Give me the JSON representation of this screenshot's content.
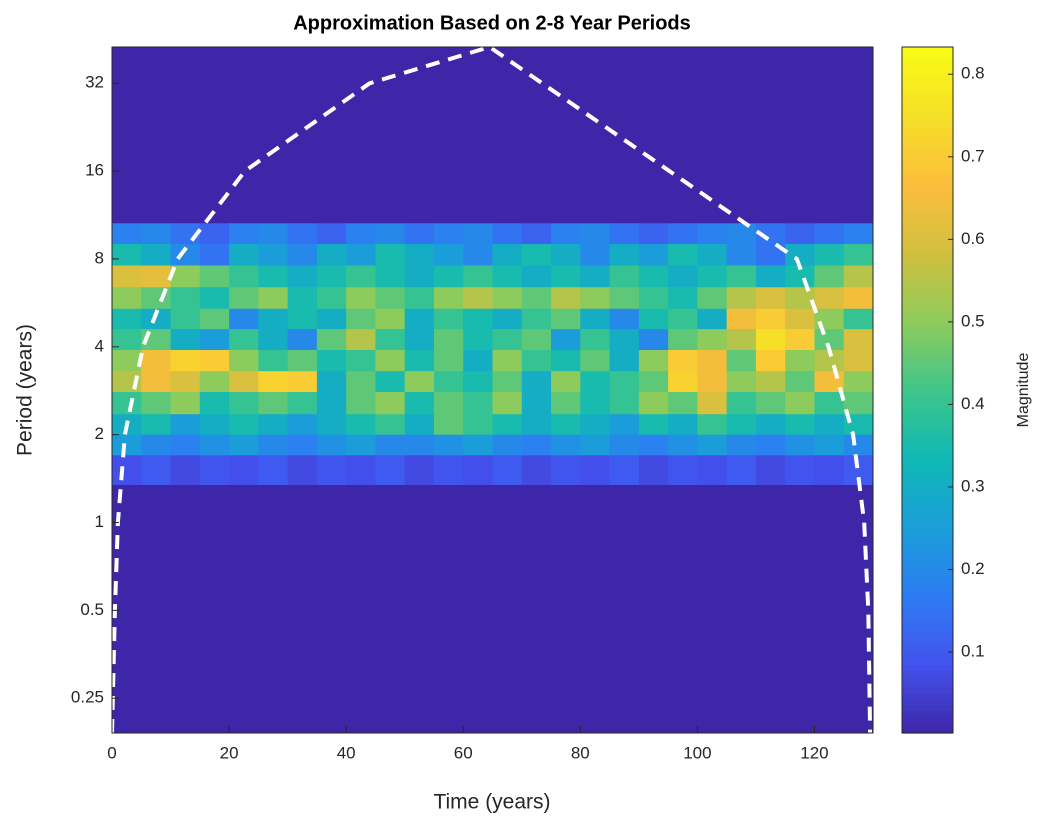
{
  "chart_data": {
    "type": "heatmap",
    "title": "Approximation Based on 2-8 Year Periods",
    "x_label": "Time (years)",
    "y_label": "Period (years)",
    "colorbar_label": "Magnitude",
    "y_scale": "log2",
    "xlim": [
      0,
      130
    ],
    "ylim": [
      0.19,
      42.6
    ],
    "xticks": [
      0,
      20,
      40,
      60,
      80,
      100,
      120
    ],
    "yticks": [
      0.25,
      0.5,
      1,
      2,
      4,
      8,
      16,
      32
    ],
    "clim": [
      0.002,
      0.833
    ],
    "cticks": [
      0.1,
      0.2,
      0.3,
      0.4,
      0.5,
      0.6,
      0.7,
      0.8
    ],
    "colormap": [
      "#3e26a8",
      "#4352ee",
      "#2d7cf3",
      "#1a9ed9",
      "#0fb8b5",
      "#3fc68a",
      "#8ecb5c",
      "#d0c03e",
      "#fcbe3c",
      "#f5df27",
      "#f9fb15"
    ],
    "x_edges": [
      0,
      5,
      10,
      15,
      20,
      25,
      30,
      35,
      40,
      45,
      50,
      55,
      60,
      65,
      70,
      75,
      80,
      85,
      90,
      95,
      100,
      105,
      110,
      115,
      120,
      125,
      130
    ],
    "y_edges": [
      10.6,
      9,
      7.6,
      6.4,
      5.4,
      4.6,
      3.9,
      3.3,
      2.8,
      2.35,
      2.0,
      1.7,
      1.35
    ],
    "values": [
      [
        0.18,
        0.2,
        0.15,
        0.12,
        0.18,
        0.2,
        0.15,
        0.12,
        0.18,
        0.2,
        0.15,
        0.18,
        0.2,
        0.15,
        0.12,
        0.18,
        0.2,
        0.15,
        0.12,
        0.15,
        0.18,
        0.2,
        0.15,
        0.12,
        0.15,
        0.18
      ],
      [
        0.35,
        0.3,
        0.2,
        0.15,
        0.3,
        0.25,
        0.2,
        0.3,
        0.25,
        0.35,
        0.3,
        0.25,
        0.2,
        0.3,
        0.35,
        0.3,
        0.2,
        0.3,
        0.25,
        0.35,
        0.3,
        0.2,
        0.15,
        0.3,
        0.35,
        0.4
      ],
      [
        0.6,
        0.62,
        0.5,
        0.45,
        0.4,
        0.35,
        0.3,
        0.35,
        0.4,
        0.35,
        0.3,
        0.35,
        0.4,
        0.35,
        0.3,
        0.35,
        0.3,
        0.4,
        0.35,
        0.3,
        0.35,
        0.4,
        0.3,
        0.35,
        0.45,
        0.55
      ],
      [
        0.5,
        0.45,
        0.4,
        0.35,
        0.45,
        0.5,
        0.35,
        0.4,
        0.5,
        0.45,
        0.4,
        0.5,
        0.55,
        0.5,
        0.45,
        0.55,
        0.5,
        0.45,
        0.4,
        0.35,
        0.45,
        0.55,
        0.6,
        0.55,
        0.6,
        0.65
      ],
      [
        0.35,
        0.3,
        0.4,
        0.45,
        0.2,
        0.3,
        0.35,
        0.3,
        0.45,
        0.5,
        0.3,
        0.4,
        0.35,
        0.3,
        0.4,
        0.45,
        0.3,
        0.2,
        0.35,
        0.4,
        0.3,
        0.65,
        0.7,
        0.6,
        0.5,
        0.4
      ],
      [
        0.4,
        0.45,
        0.3,
        0.25,
        0.4,
        0.3,
        0.2,
        0.45,
        0.55,
        0.4,
        0.3,
        0.45,
        0.35,
        0.4,
        0.45,
        0.25,
        0.4,
        0.3,
        0.2,
        0.45,
        0.5,
        0.55,
        0.75,
        0.7,
        0.45,
        0.6
      ],
      [
        0.5,
        0.65,
        0.72,
        0.7,
        0.5,
        0.4,
        0.45,
        0.35,
        0.4,
        0.5,
        0.35,
        0.45,
        0.3,
        0.5,
        0.4,
        0.35,
        0.45,
        0.3,
        0.5,
        0.7,
        0.65,
        0.45,
        0.7,
        0.5,
        0.55,
        0.6
      ],
      [
        0.55,
        0.65,
        0.6,
        0.5,
        0.6,
        0.72,
        0.7,
        0.3,
        0.45,
        0.35,
        0.5,
        0.4,
        0.35,
        0.45,
        0.3,
        0.5,
        0.35,
        0.4,
        0.45,
        0.72,
        0.65,
        0.5,
        0.55,
        0.45,
        0.65,
        0.5
      ],
      [
        0.4,
        0.45,
        0.5,
        0.35,
        0.4,
        0.45,
        0.4,
        0.3,
        0.45,
        0.5,
        0.35,
        0.45,
        0.4,
        0.5,
        0.3,
        0.45,
        0.35,
        0.4,
        0.5,
        0.45,
        0.6,
        0.4,
        0.45,
        0.5,
        0.4,
        0.45
      ],
      [
        0.3,
        0.35,
        0.25,
        0.3,
        0.35,
        0.3,
        0.25,
        0.3,
        0.35,
        0.4,
        0.3,
        0.45,
        0.4,
        0.35,
        0.3,
        0.35,
        0.3,
        0.25,
        0.35,
        0.3,
        0.4,
        0.35,
        0.3,
        0.35,
        0.3,
        0.35
      ],
      [
        0.25,
        0.2,
        0.18,
        0.22,
        0.25,
        0.2,
        0.18,
        0.22,
        0.25,
        0.2,
        0.2,
        0.22,
        0.25,
        0.2,
        0.18,
        0.22,
        0.25,
        0.2,
        0.18,
        0.22,
        0.25,
        0.2,
        0.18,
        0.22,
        0.25,
        0.2
      ],
      [
        0.08,
        0.1,
        0.07,
        0.09,
        0.08,
        0.1,
        0.07,
        0.09,
        0.08,
        0.1,
        0.07,
        0.09,
        0.08,
        0.1,
        0.07,
        0.09,
        0.08,
        0.1,
        0.07,
        0.09,
        0.08,
        0.1,
        0.07,
        0.09,
        0.08,
        0.1
      ]
    ],
    "coi": {
      "color": "#ffffff",
      "x": [
        0,
        0.5,
        1.0,
        2.2,
        5.3,
        11.2,
        22.7,
        44,
        64.5,
        117,
        122.4,
        126.6,
        128.5,
        129.2,
        129.5
      ],
      "y": [
        0.19,
        0.5,
        1,
        2,
        4,
        8,
        16,
        32,
        42.6,
        8,
        4,
        2,
        1,
        0.5,
        0.19
      ]
    }
  }
}
